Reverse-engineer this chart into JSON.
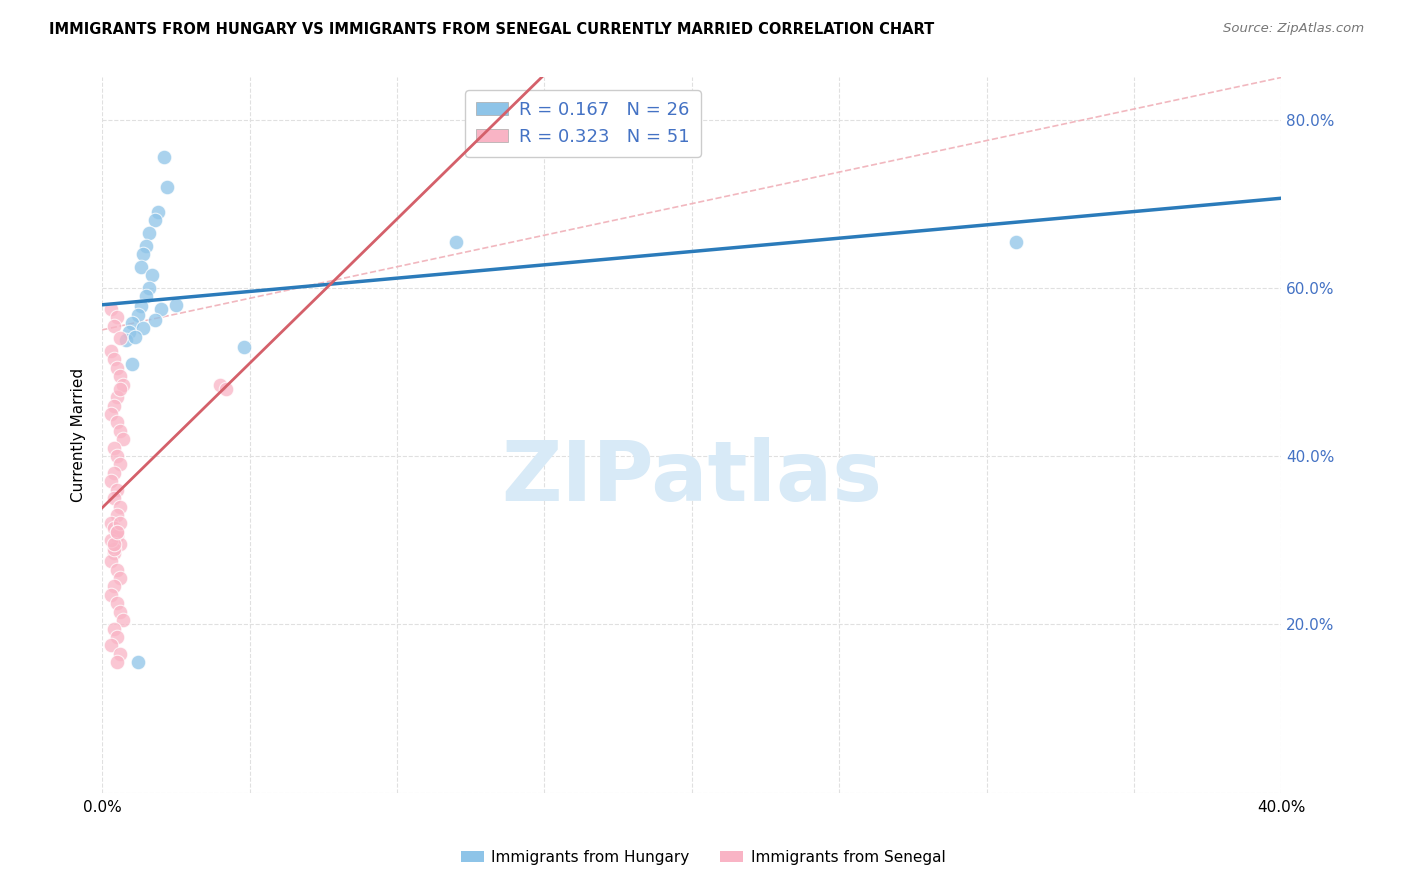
{
  "title": "IMMIGRANTS FROM HUNGARY VS IMMIGRANTS FROM SENEGAL CURRENTLY MARRIED CORRELATION CHART",
  "source": "Source: ZipAtlas.com",
  "ylabel": "Currently Married",
  "xlim": [
    0.0,
    0.4
  ],
  "ylim": [
    0.0,
    0.85
  ],
  "xticks": [
    0.0,
    0.05,
    0.1,
    0.15,
    0.2,
    0.25,
    0.3,
    0.35,
    0.4
  ],
  "xticklabels": [
    "0.0%",
    "",
    "",
    "",
    "",
    "",
    "",
    "",
    "40.0%"
  ],
  "yticks": [
    0.0,
    0.2,
    0.4,
    0.6,
    0.8
  ],
  "yticklabels": [
    "",
    "20.0%",
    "40.0%",
    "60.0%",
    "80.0%"
  ],
  "hungary_R": 0.167,
  "hungary_N": 26,
  "senegal_R": 0.323,
  "senegal_N": 51,
  "hungary_color": "#8ec4e8",
  "senegal_color": "#f9b4c5",
  "hungary_line_color": "#2b7bba",
  "senegal_line_color": "#d4606a",
  "diagonal_color": "#f0b0b8",
  "legend_label_hungary": "Immigrants from Hungary",
  "legend_label_senegal": "Immigrants from Senegal",
  "hungary_x": [
    0.021,
    0.022,
    0.019,
    0.018,
    0.016,
    0.015,
    0.014,
    0.013,
    0.017,
    0.016,
    0.015,
    0.013,
    0.012,
    0.01,
    0.009,
    0.008,
    0.02,
    0.018,
    0.014,
    0.011,
    0.025,
    0.048,
    0.12,
    0.01,
    0.31,
    0.012
  ],
  "hungary_y": [
    0.755,
    0.72,
    0.69,
    0.68,
    0.665,
    0.65,
    0.64,
    0.625,
    0.615,
    0.6,
    0.59,
    0.578,
    0.568,
    0.558,
    0.548,
    0.538,
    0.575,
    0.562,
    0.552,
    0.542,
    0.58,
    0.53,
    0.655,
    0.51,
    0.655,
    0.155
  ],
  "senegal_x": [
    0.003,
    0.005,
    0.004,
    0.006,
    0.003,
    0.004,
    0.005,
    0.006,
    0.007,
    0.005,
    0.004,
    0.003,
    0.005,
    0.006,
    0.007,
    0.004,
    0.005,
    0.006,
    0.004,
    0.003,
    0.005,
    0.004,
    0.006,
    0.005,
    0.003,
    0.004,
    0.005,
    0.006,
    0.004,
    0.003,
    0.005,
    0.006,
    0.004,
    0.003,
    0.005,
    0.006,
    0.007,
    0.004,
    0.005,
    0.003,
    0.006,
    0.005,
    0.004,
    0.003,
    0.005,
    0.006,
    0.004,
    0.005,
    0.006,
    0.04,
    0.042
  ],
  "senegal_y": [
    0.575,
    0.565,
    0.555,
    0.54,
    0.525,
    0.515,
    0.505,
    0.495,
    0.485,
    0.47,
    0.46,
    0.45,
    0.44,
    0.43,
    0.42,
    0.41,
    0.4,
    0.39,
    0.38,
    0.37,
    0.36,
    0.35,
    0.34,
    0.33,
    0.32,
    0.315,
    0.305,
    0.295,
    0.285,
    0.275,
    0.265,
    0.255,
    0.245,
    0.235,
    0.225,
    0.215,
    0.205,
    0.195,
    0.185,
    0.175,
    0.165,
    0.155,
    0.29,
    0.3,
    0.31,
    0.32,
    0.295,
    0.31,
    0.48,
    0.485,
    0.48
  ],
  "background_color": "#ffffff",
  "grid_color": "#e0e0e0",
  "right_axis_color": "#4472c4",
  "watermark_color": "#d8eaf7"
}
